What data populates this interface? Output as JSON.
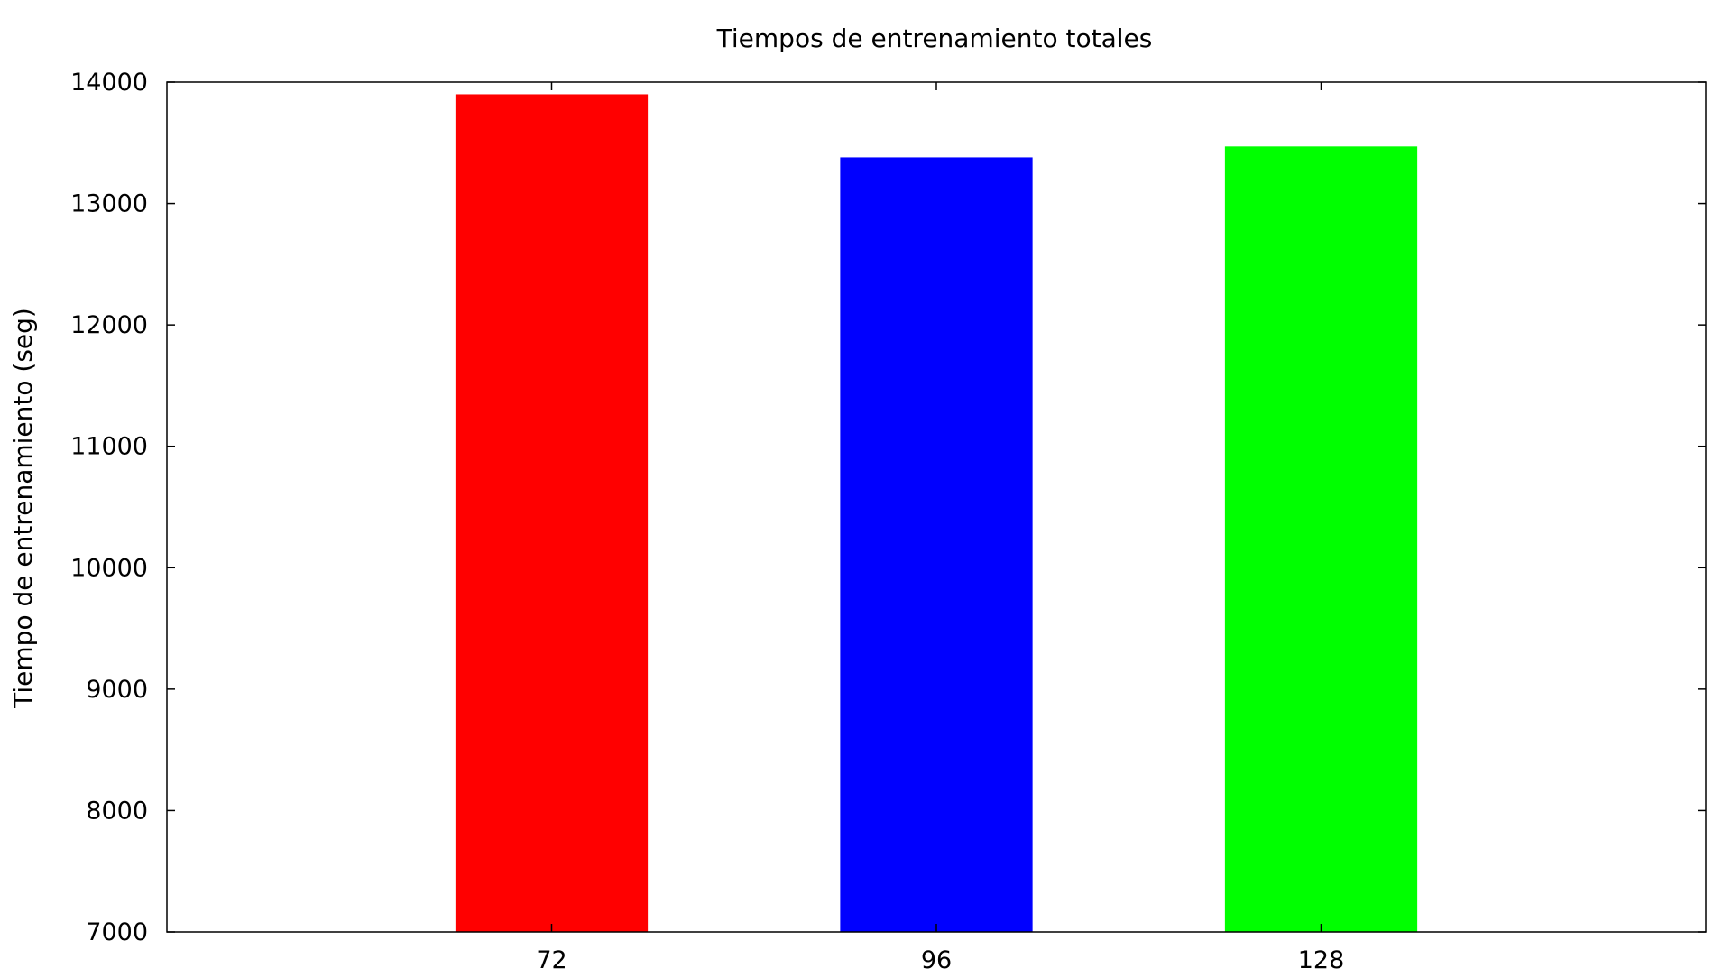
{
  "chart_data": {
    "type": "bar",
    "title": "Tiempos de entrenamiento totales",
    "xlabel": "",
    "ylabel": "Tiempo de entrenamiento (seg)",
    "categories": [
      "72",
      "96",
      "128"
    ],
    "values": [
      13900,
      13380,
      13470
    ],
    "colors": [
      "#ff0000",
      "#0000ff",
      "#00ff00"
    ],
    "ylim": [
      7000,
      14000
    ],
    "yticks": [
      7000,
      8000,
      9000,
      10000,
      11000,
      12000,
      13000,
      14000
    ],
    "xlim": [
      -1,
      3
    ],
    "grid": false,
    "legend": "none"
  }
}
